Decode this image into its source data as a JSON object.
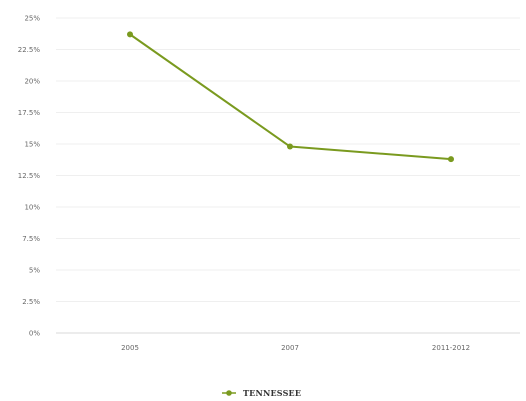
{
  "chart_data": {
    "type": "line",
    "categories": [
      "2005",
      "2007",
      "2011-2012"
    ],
    "series": [
      {
        "name": "TENNESSEE",
        "values": [
          23.7,
          14.8,
          13.8
        ],
        "color": "#7a9a1f"
      }
    ],
    "y_ticks": [
      "0%",
      "2.5%",
      "5%",
      "7.5%",
      "10%",
      "12.5%",
      "15%",
      "17.5%",
      "20%",
      "22.5%",
      "25%"
    ],
    "ylim": [
      0,
      25
    ],
    "grid": true,
    "legend_position": "bottom-center"
  }
}
